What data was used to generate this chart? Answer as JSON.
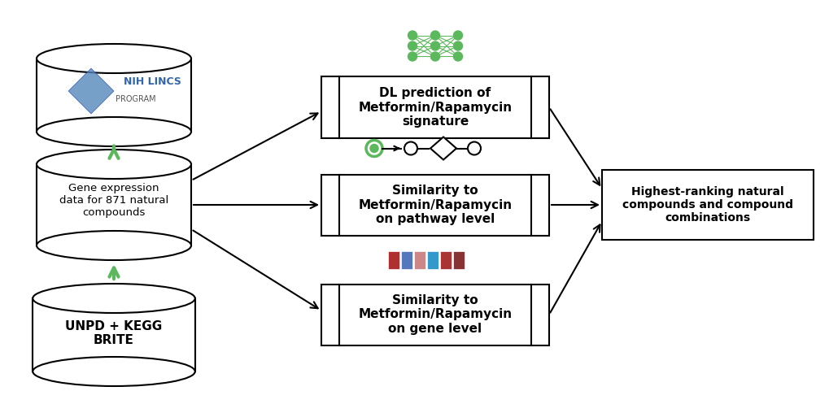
{
  "bg_color": "#ffffff",
  "arrow_color": "#000000",
  "green_arrow_color": "#5cb85c",
  "db_ellipse_color": "#000000",
  "box_line_color": "#000000",
  "box_text_color": "#000000",
  "db1_label": "NIH LINCS\nPROGRAM",
  "db2_label": "Gene expression\ndata for 871 natural\ncompounds",
  "db3_label": "UNPD + KEGG\nBRITE",
  "box1_label": "DL prediction of\nMetformin/Rapamycin\nsignature",
  "box2_label": "Similarity to\nMetformin/Rapamycin\non pathway level",
  "box3_label": "Similarity to\nMetformin/Rapamycin\non gene level",
  "box4_label": "Highest-ranking natural\ncompounds and compound\ncombinations",
  "nn_color": "#5cb85c",
  "heatmap_colors": [
    "#b03030",
    "#5577bb",
    "#cc8888",
    "#3399cc",
    "#aa3333",
    "#883333"
  ],
  "figsize": [
    10.2,
    4.97
  ],
  "dpi": 100
}
